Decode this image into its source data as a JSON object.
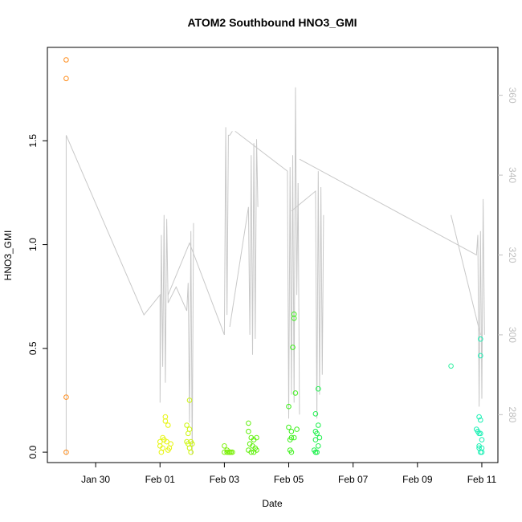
{
  "chart_data": {
    "type": "scatter",
    "title": "ATOM2 Southbound HNO3_GMI",
    "xlabel": "Date",
    "ylabel": "HNO3_GMI",
    "right_axis_label": "",
    "xlim": [
      "2017-01-28T12:00",
      "2017-02-11T12:00"
    ],
    "ylim": [
      -0.05,
      1.95
    ],
    "right_ylim": [
      268,
      372
    ],
    "grid": false,
    "legend": "none",
    "x_ticks": [
      {
        "date": "2017-01-30",
        "label": "Jan 30"
      },
      {
        "date": "2017-02-01",
        "label": "Feb 01"
      },
      {
        "date": "2017-02-03",
        "label": "Feb 03"
      },
      {
        "date": "2017-02-05",
        "label": "Feb 05"
      },
      {
        "date": "2017-02-07",
        "label": "Feb 07"
      },
      {
        "date": "2017-02-09",
        "label": "Feb 09"
      },
      {
        "date": "2017-02-11",
        "label": "Feb 11"
      }
    ],
    "y_ticks": [
      0.0,
      0.5,
      1.0,
      1.5
    ],
    "y_tick_labels": [
      "0.0",
      "0.5",
      "1.0",
      "1.5"
    ],
    "right_ticks": [
      280,
      300,
      320,
      340,
      360
    ],
    "right_tick_labels": [
      "280",
      "300",
      "320",
      "340",
      "360"
    ],
    "point_series": [
      {
        "color": "#ff8c1a",
        "points": [
          [
            "2017-01-29T02:00",
            1.89
          ],
          [
            "2017-01-29T02:00",
            1.8
          ],
          [
            "2017-01-29T02:00",
            0.265
          ],
          [
            "2017-01-29T02:00",
            0.0
          ]
        ]
      },
      {
        "color": "#e6f50a",
        "points": [
          [
            "2017-02-01T00:00",
            0.05
          ],
          [
            "2017-02-01T00:00",
            0.03
          ],
          [
            "2017-02-01T02:00",
            0.07
          ],
          [
            "2017-02-01T02:00",
            0.02
          ],
          [
            "2017-02-01T04:00",
            0.17
          ],
          [
            "2017-02-01T04:00",
            0.15
          ],
          [
            "2017-02-01T06:00",
            0.13
          ],
          [
            "2017-02-01T06:00",
            0.01
          ],
          [
            "2017-02-01T08:00",
            0.04
          ],
          [
            "2017-02-01T03:00",
            0.06
          ],
          [
            "2017-02-01T01:00",
            0.0
          ],
          [
            "2017-02-01T05:00",
            0.05
          ],
          [
            "2017-02-01T07:00",
            0.02
          ]
        ]
      },
      {
        "color": "#ccf50a",
        "points": [
          [
            "2017-02-01T20:00",
            0.13
          ],
          [
            "2017-02-01T21:00",
            0.09
          ],
          [
            "2017-02-01T22:00",
            0.11
          ],
          [
            "2017-02-01T20:00",
            0.05
          ],
          [
            "2017-02-01T21:00",
            0.04
          ],
          [
            "2017-02-01T23:00",
            0.05
          ],
          [
            "2017-02-02T00:00",
            0.04
          ],
          [
            "2017-02-01T22:00",
            0.02
          ],
          [
            "2017-02-01T23:00",
            0.0
          ],
          [
            "2017-02-01T22:00",
            0.25
          ]
        ]
      },
      {
        "color": "#7cf00a",
        "points": [
          [
            "2017-02-03T00:00",
            0.03
          ],
          [
            "2017-02-03T00:00",
            0.0
          ],
          [
            "2017-02-03T02:00",
            0.01
          ],
          [
            "2017-02-03T03:00",
            0.0
          ],
          [
            "2017-02-03T04:00",
            0.0
          ],
          [
            "2017-02-03T05:00",
            0.0
          ],
          [
            "2017-02-03T06:00",
            0.0
          ],
          [
            "2017-02-03T02:00",
            0.0
          ],
          [
            "2017-02-03T04:00",
            0.0
          ]
        ]
      },
      {
        "color": "#5ef00a",
        "points": [
          [
            "2017-02-03T18:00",
            0.14
          ],
          [
            "2017-02-03T18:00",
            0.1
          ],
          [
            "2017-02-03T20:00",
            0.07
          ],
          [
            "2017-02-03T22:00",
            0.06
          ],
          [
            "2017-02-04T00:00",
            0.07
          ],
          [
            "2017-02-03T19:00",
            0.04
          ],
          [
            "2017-02-03T21:00",
            0.03
          ],
          [
            "2017-02-03T23:00",
            0.02
          ],
          [
            "2017-02-04T00:00",
            0.01
          ],
          [
            "2017-02-03T20:00",
            0.0
          ],
          [
            "2017-02-03T18:00",
            0.01
          ],
          [
            "2017-02-03T22:00",
            0.0
          ]
        ]
      },
      {
        "color": "#3df01a",
        "points": [
          [
            "2017-02-05T00:00",
            0.22
          ],
          [
            "2017-02-05T00:00",
            0.12
          ],
          [
            "2017-02-05T02:00",
            0.1
          ],
          [
            "2017-02-05T02:00",
            0.07
          ],
          [
            "2017-02-05T01:00",
            0.06
          ],
          [
            "2017-02-05T04:00",
            0.07
          ],
          [
            "2017-02-05T01:00",
            0.01
          ],
          [
            "2017-02-05T02:00",
            0.0
          ],
          [
            "2017-02-05T03:00",
            0.505
          ],
          [
            "2017-02-05T04:00",
            0.665
          ],
          [
            "2017-02-05T04:00",
            0.645
          ],
          [
            "2017-02-05T05:00",
            0.285
          ],
          [
            "2017-02-05T06:00",
            0.11
          ]
        ]
      },
      {
        "color": "#1af04a",
        "points": [
          [
            "2017-02-05T20:00",
            0.185
          ],
          [
            "2017-02-05T22:00",
            0.305
          ],
          [
            "2017-02-05T22:00",
            0.13
          ],
          [
            "2017-02-05T20:00",
            0.1
          ],
          [
            "2017-02-05T21:00",
            0.09
          ],
          [
            "2017-02-05T20:00",
            0.06
          ],
          [
            "2017-02-05T23:00",
            0.07
          ],
          [
            "2017-02-05T22:00",
            0.03
          ],
          [
            "2017-02-05T19:00",
            0.01
          ],
          [
            "2017-02-05T20:00",
            0.0
          ],
          [
            "2017-02-05T21:00",
            0.0
          ]
        ]
      },
      {
        "color": "#2ef0a0",
        "points": [
          [
            "2017-02-10T01:00",
            0.415
          ]
        ]
      },
      {
        "color": "#1af0b4",
        "points": [
          [
            "2017-02-10T20:00",
            0.11
          ],
          [
            "2017-02-10T21:00",
            0.1
          ],
          [
            "2017-02-10T22:00",
            0.09
          ],
          [
            "2017-02-10T23:00",
            0.09
          ],
          [
            "2017-02-10T22:00",
            0.17
          ],
          [
            "2017-02-10T23:00",
            0.155
          ],
          [
            "2017-02-10T23:00",
            0.545
          ],
          [
            "2017-02-10T23:00",
            0.465
          ],
          [
            "2017-02-11T00:00",
            0.06
          ],
          [
            "2017-02-10T22:00",
            0.03
          ],
          [
            "2017-02-11T00:00",
            0.02
          ],
          [
            "2017-02-10T23:00",
            0.0
          ],
          [
            "2017-02-10T22:00",
            0.02
          ],
          [
            "2017-02-11T00:00",
            0.0
          ]
        ]
      }
    ],
    "line_series": {
      "color": "#c8c8c8",
      "axis": "right",
      "segments": [
        [
          [
            "2017-01-29T02:00",
            270
          ],
          [
            "2017-01-29T02:00",
            350
          ],
          [
            "2017-01-31T12:00",
            305
          ],
          [
            "2017-02-01T00:00",
            310
          ],
          [
            "2017-02-01T00:00",
            283
          ],
          [
            "2017-02-01T01:00",
            325
          ],
          [
            "2017-02-01T02:00",
            292
          ],
          [
            "2017-02-01T03:00",
            330
          ],
          [
            "2017-02-01T04:00",
            288
          ],
          [
            "2017-02-01T05:00",
            329
          ],
          [
            "2017-02-01T06:00",
            308
          ],
          [
            "2017-02-01T12:00",
            312
          ],
          [
            "2017-02-01T20:00",
            306
          ],
          [
            "2017-02-01T21:00",
            313
          ],
          [
            "2017-02-01T22:00",
            278
          ],
          [
            "2017-02-01T23:00",
            326
          ],
          [
            "2017-02-02T00:00",
            270
          ],
          [
            "2017-02-02T01:00",
            328
          ]
        ],
        [
          [
            "2017-02-01T06:00",
            310
          ],
          [
            "2017-02-01T22:00",
            323
          ],
          [
            "2017-02-03T00:00",
            300
          ],
          [
            "2017-02-03T01:00",
            352
          ],
          [
            "2017-02-03T02:00",
            305
          ],
          [
            "2017-02-03T03:00",
            350
          ],
          [
            "2017-02-03T04:00",
            350
          ],
          [
            "2017-02-03T06:00",
            351
          ]
        ],
        [
          [
            "2017-02-03T04:00",
            302
          ],
          [
            "2017-02-03T18:00",
            332
          ],
          [
            "2017-02-03T19:00",
            300
          ],
          [
            "2017-02-03T20:00",
            345
          ],
          [
            "2017-02-03T21:00",
            295
          ],
          [
            "2017-02-03T22:00",
            348
          ],
          [
            "2017-02-03T23:00",
            299
          ],
          [
            "2017-02-04T00:00",
            349
          ],
          [
            "2017-02-04T01:00",
            332
          ]
        ],
        [
          [
            "2017-02-03T08:00",
            351
          ],
          [
            "2017-02-04T23:00",
            341
          ],
          [
            "2017-02-05T00:00",
            279
          ],
          [
            "2017-02-05T01:00",
            342
          ],
          [
            "2017-02-05T02:00",
            285
          ],
          [
            "2017-02-05T03:00",
            345
          ],
          [
            "2017-02-05T04:00",
            283
          ],
          [
            "2017-02-05T05:00",
            362
          ],
          [
            "2017-02-05T06:00",
            310
          ],
          [
            "2017-02-05T07:00",
            338
          ],
          [
            "2017-02-05T08:00",
            280
          ]
        ],
        [
          [
            "2017-02-05T02:00",
            331
          ],
          [
            "2017-02-05T20:00",
            336
          ],
          [
            "2017-02-05T21:00",
            279
          ],
          [
            "2017-02-05T22:00",
            341
          ],
          [
            "2017-02-05T23:00",
            285
          ],
          [
            "2017-02-06T00:00",
            337
          ],
          [
            "2017-02-06T01:00",
            290
          ],
          [
            "2017-02-06T02:00",
            330
          ]
        ],
        [
          [
            "2017-02-05T08:00",
            344
          ],
          [
            "2017-02-10T20:00",
            320
          ],
          [
            "2017-02-10T21:00",
            325
          ],
          [
            "2017-02-10T22:00",
            282
          ],
          [
            "2017-02-10T23:00",
            326
          ],
          [
            "2017-02-11T00:00",
            284
          ],
          [
            "2017-02-11T01:00",
            334
          ],
          [
            "2017-02-11T02:00",
            300
          ]
        ],
        [
          [
            "2017-02-10T01:00",
            330
          ],
          [
            "2017-02-10T23:00",
            300
          ]
        ]
      ]
    }
  }
}
